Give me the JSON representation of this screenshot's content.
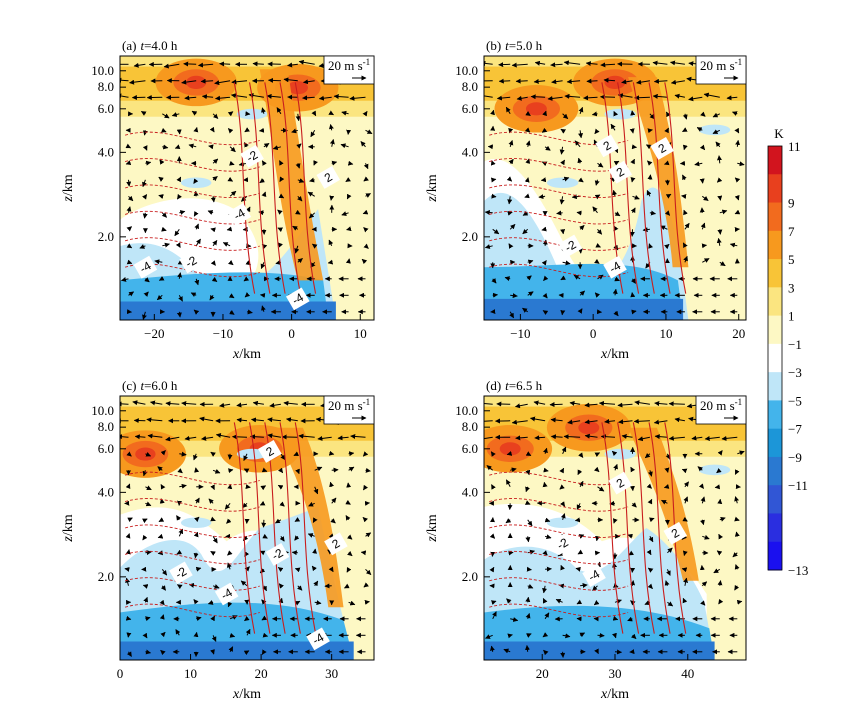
{
  "chart_data": {
    "type": "heatmap",
    "description_free": true,
    "panels": [
      {
        "panel_label": "(a)",
        "time_prefix": "t",
        "time_text": "=4.0 h",
        "xlabel": "x/km",
        "ylabel": "z/km",
        "xlim": [
          -25,
          12
        ],
        "xticks": [
          -20,
          -10,
          0,
          10
        ],
        "yticks": [
          "10.0",
          "8.0",
          "6.0",
          "4.0",
          "2.0"
        ],
        "vector_ref": "20 m s",
        "vector_ref_exp": "-1",
        "contour_labels": [
          "-2",
          "2",
          "-4",
          "-2",
          "-4",
          "-4"
        ]
      },
      {
        "panel_label": "(b)",
        "time_prefix": "t",
        "time_text": "=5.0 h",
        "xlabel": "x/km",
        "ylabel": "z/km",
        "xlim": [
          -15,
          21
        ],
        "xticks": [
          -10,
          0,
          10,
          20
        ],
        "yticks": [
          "10.0",
          "8.0",
          "6.0",
          "4.0",
          "2.0"
        ],
        "vector_ref": "20 m s",
        "vector_ref_exp": "-1",
        "contour_labels": [
          "2",
          "2",
          "2",
          "-2",
          "-4"
        ]
      },
      {
        "panel_label": "(c)",
        "time_prefix": "t",
        "time_text": "=6.0 h",
        "xlabel": "x/km",
        "ylabel": "z/km",
        "xlim": [
          0,
          36
        ],
        "xticks": [
          0,
          10,
          20,
          30
        ],
        "yticks": [
          "10.0",
          "8.0",
          "6.0",
          "4.0",
          "2.0"
        ],
        "vector_ref": "20 m s",
        "vector_ref_exp": "-1",
        "contour_labels": [
          "2",
          "-2",
          "-2",
          "-4",
          "2",
          "-4"
        ]
      },
      {
        "panel_label": "(d)",
        "time_prefix": "t",
        "time_text": "=6.5 h",
        "xlabel": "x/km",
        "ylabel": "z/km",
        "xlim": [
          12,
          48
        ],
        "xticks": [
          20,
          30,
          40
        ],
        "yticks": [
          "10.0",
          "8.0",
          "6.0",
          "4.0",
          "2.0"
        ],
        "vector_ref": "20 m s",
        "vector_ref_exp": "-1",
        "contour_labels": [
          "2",
          "-2",
          "2",
          "-4"
        ]
      }
    ],
    "colorbar": {
      "unit": "K",
      "levels": [
        "11",
        "9",
        "7",
        "5",
        "3",
        "1",
        "-1",
        "-3",
        "-5",
        "-7",
        "-9",
        "-11",
        "-13"
      ],
      "colors": [
        "#d2141e",
        "#e8401e",
        "#f26b1e",
        "#f7991e",
        "#f8c437",
        "#fbe580",
        "#fdf8c4",
        "#ffffff",
        "#bfe6f8",
        "#43b4eb",
        "#1c96d8",
        "#2a79d1",
        "#3156d5",
        "#2a2ee0",
        "#1a10ef"
      ]
    },
    "colors": {
      "contour_positive": "#c81e1e",
      "contour_negative": "#c81e1e",
      "vector": "#000000"
    }
  }
}
